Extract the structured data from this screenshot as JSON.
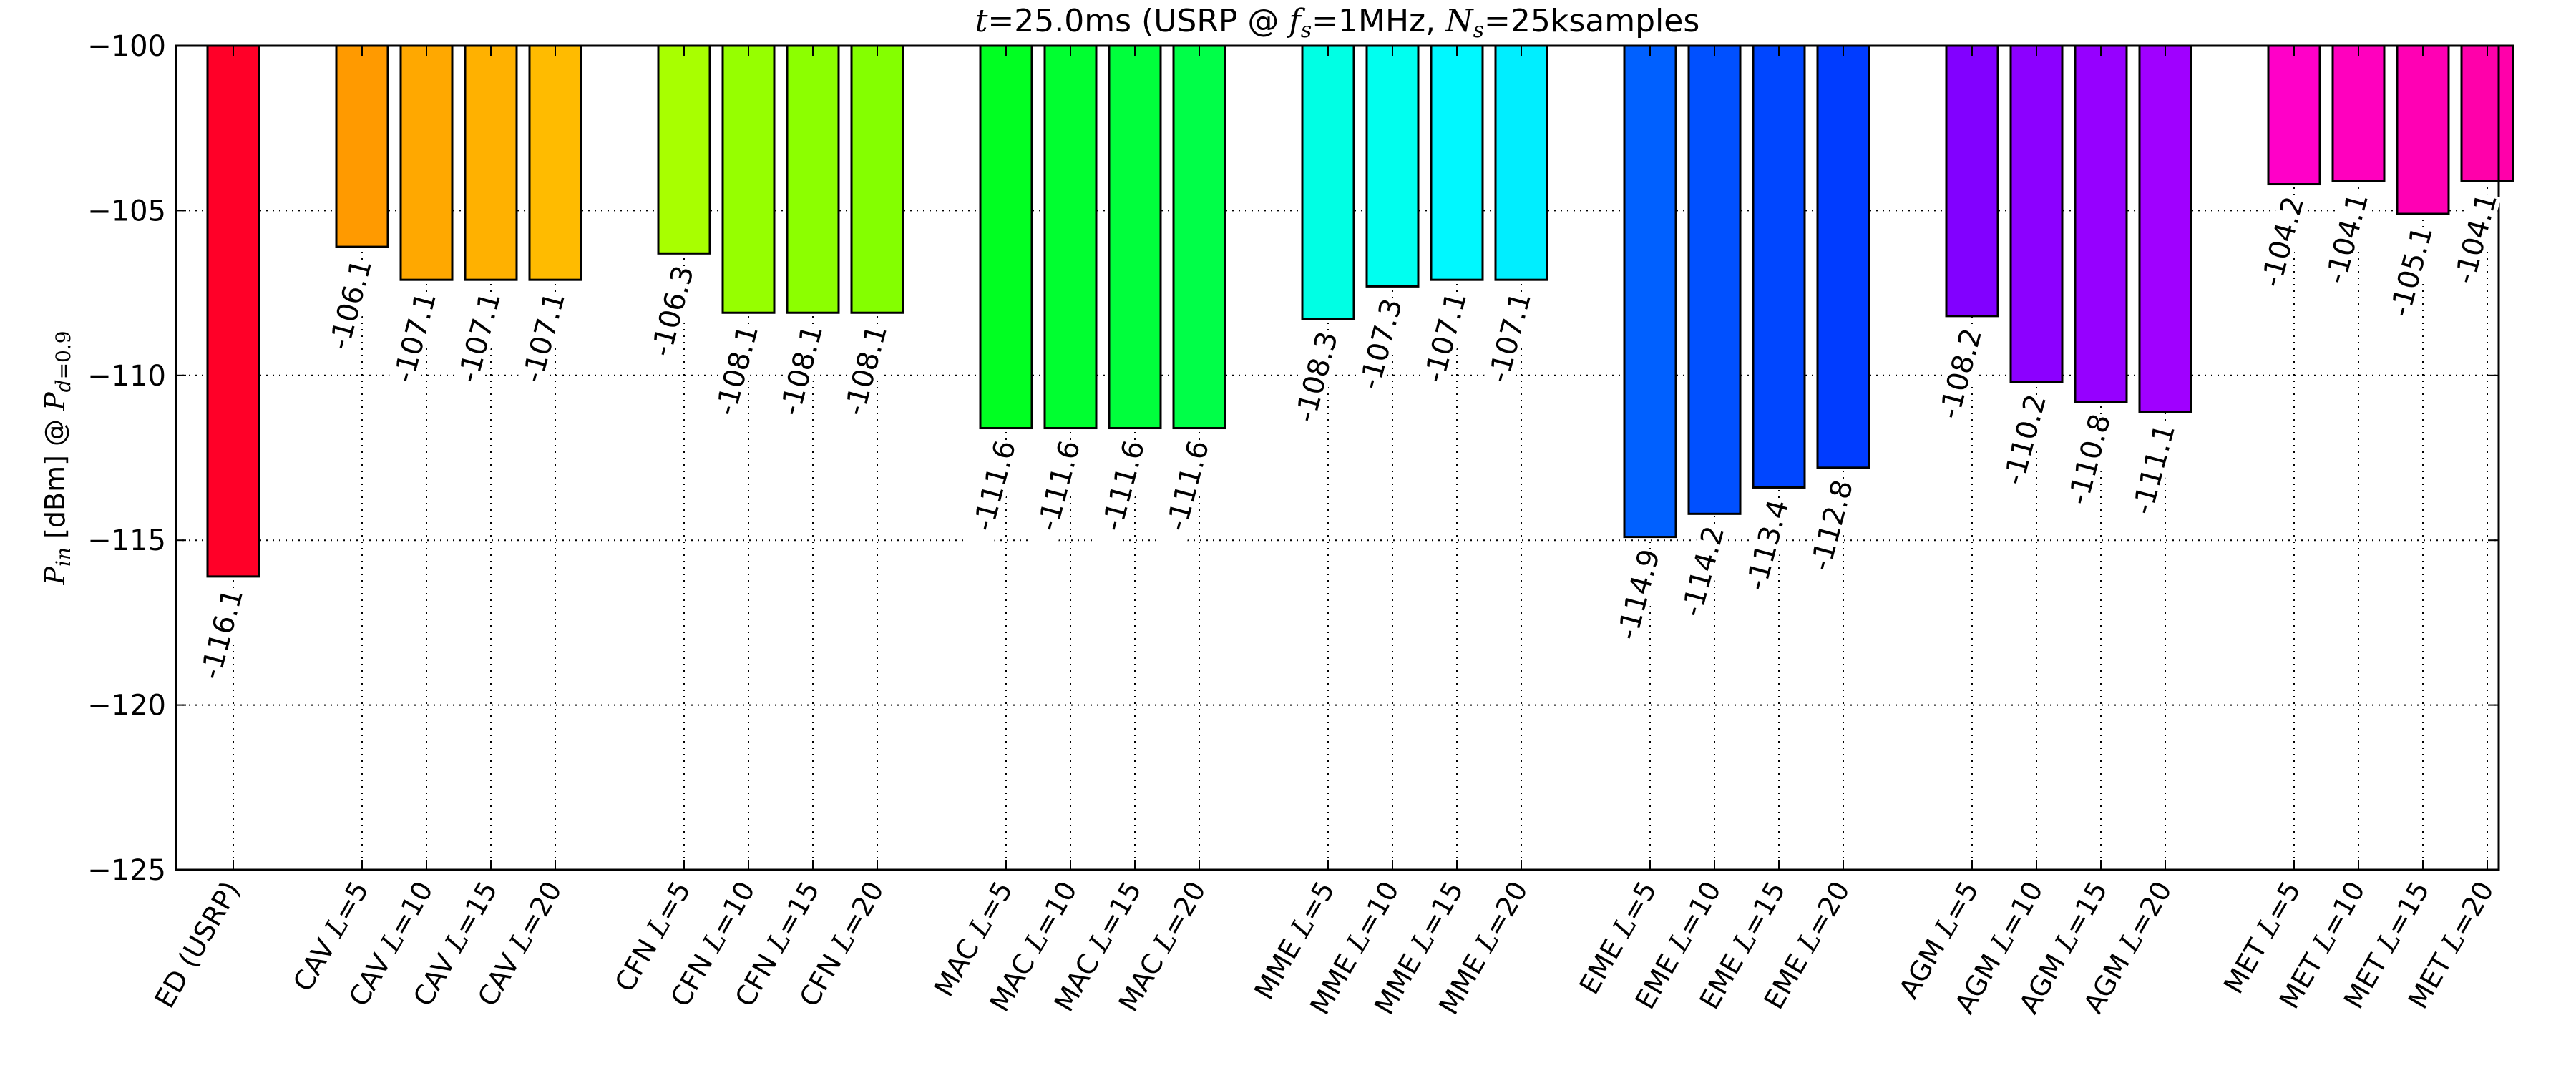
{
  "chart_data": {
    "type": "bar",
    "title": "t=25.0ms (USRP @ f_s=1MHz, N_s=25ksamples",
    "title_parts": {
      "t_var": "t",
      "t_val": "=25.0",
      "mid1": "ms (USRP @ ",
      "fs_var": "f",
      "fs_sub": "s",
      "fs_val": "=1",
      "mid2": "MHz, ",
      "ns_var": "N",
      "ns_sub": "s",
      "ns_val": "=25",
      "tail": "ksamples"
    },
    "ylabel": "P_in [dBm] @ P_d=0.9",
    "ylabel_parts": {
      "p_var": "P",
      "p_sub": "in",
      "middle": " [dBm] @ ",
      "pd_var": "P",
      "pd_sub": "d",
      "pd_val": "=0.9"
    },
    "ylim": [
      -125,
      -100
    ],
    "yticks": [
      -100,
      -105,
      -110,
      -115,
      -120,
      -125
    ],
    "grid": true,
    "bars_hang_from": -100,
    "categories": [
      "ED (USRP)",
      "CAV L=5",
      "CAV L=10",
      "CAV L=15",
      "CAV L=20",
      "CFN L=5",
      "CFN L=10",
      "CFN L=15",
      "CFN L=20",
      "MAC L=5",
      "MAC L=10",
      "MAC L=15",
      "MAC L=20",
      "MME L=5",
      "MME L=10",
      "MME L=15",
      "MME L=20",
      "EME L=5",
      "EME L=10",
      "EME L=15",
      "EME L=20",
      "AGM L=5",
      "AGM L=10",
      "AGM L=15",
      "AGM L=20",
      "MET L=5",
      "MET L=10",
      "MET L=15",
      "MET L=20"
    ],
    "values": [
      -116.1,
      -106.1,
      -107.1,
      -107.1,
      -107.1,
      -106.3,
      -108.1,
      -108.1,
      -108.1,
      -111.6,
      -111.6,
      -111.6,
      -111.6,
      -108.3,
      -107.3,
      -107.1,
      -107.1,
      -114.9,
      -114.2,
      -113.4,
      -112.8,
      -108.2,
      -110.2,
      -110.8,
      -111.1,
      -104.2,
      -104.1,
      -105.1,
      -104.1
    ],
    "value_labels": [
      "-116.1",
      "-106.1",
      "-107.1",
      "-107.1",
      "-107.1",
      "-106.3",
      "-108.1",
      "-108.1",
      "-108.1",
      "-111.6",
      "-111.6",
      "-111.6",
      "-111.6",
      "-108.3",
      "-107.3",
      "-107.1",
      "-107.1",
      "-114.9",
      "-114.2",
      "-113.4",
      "-112.8",
      "-108.2",
      "-110.2",
      "-110.8",
      "-111.1",
      "-104.2",
      "-104.1",
      "-105.1",
      "-104.1"
    ],
    "colors": [
      "#ff0028",
      "#ff9a00",
      "#ffa800",
      "#ffb100",
      "#ffbb00",
      "#a8ff00",
      "#96ff00",
      "#8cff00",
      "#84ff00",
      "#00ff22",
      "#00ff30",
      "#00ff3c",
      "#00ff48",
      "#00ffe4",
      "#00fff0",
      "#00f8ff",
      "#00eeff",
      "#0060ff",
      "#0050ff",
      "#0046ff",
      "#003cff",
      "#8200ff",
      "#8c00ff",
      "#9600ff",
      "#a000ff",
      "#ff00c8",
      "#ff00be",
      "#ff00b4",
      "#ff00aa"
    ]
  }
}
